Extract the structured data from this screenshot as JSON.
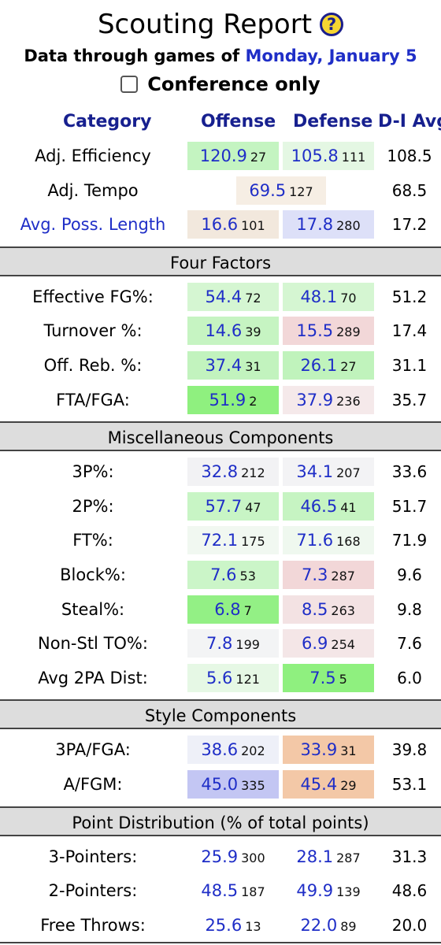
{
  "title": "Scouting Report",
  "help_icon_glyph": "?",
  "subtitle_prefix": "Data through games of ",
  "subtitle_date": "Monday, January 5",
  "conference_only_label": "Conference only",
  "conference_only_checked": false,
  "columns": {
    "category": "Category",
    "offense": "Offense",
    "defense": "Defense",
    "avg": "D-I Avg"
  },
  "rows": [
    {
      "label": "Adj. Efficiency",
      "off": "120.9",
      "off_rank": "27",
      "off_bg": "#c4f4c1",
      "def": "105.8",
      "def_rank": "111",
      "def_bg": "#e4f7e3",
      "avg": "108.5"
    },
    {
      "label": "Adj. Tempo",
      "tempo": "69.5",
      "tempo_rank": "127",
      "tempo_bg": "#f6eee4",
      "avg": "68.5"
    },
    {
      "label": "Avg. Poss. Length",
      "label_link": true,
      "off": "16.6",
      "off_rank": "101",
      "off_bg": "#f2e8dd",
      "def": "17.8",
      "def_rank": "280",
      "def_bg": "#dde0f8",
      "avg": "17.2"
    },
    {
      "section": "Four Factors"
    },
    {
      "label": "Effective FG%:",
      "off": "54.4",
      "off_rank": "72",
      "off_bg": "#d5f6d2",
      "def": "48.1",
      "def_rank": "70",
      "def_bg": "#d5f6d2",
      "avg": "51.2"
    },
    {
      "label": "Turnover %:",
      "off": "14.6",
      "off_rank": "39",
      "off_bg": "#c6f4c2",
      "def": "15.5",
      "def_rank": "289",
      "def_bg": "#f2d7d8",
      "avg": "17.4"
    },
    {
      "label": "Off. Reb. %:",
      "off": "37.4",
      "off_rank": "31",
      "off_bg": "#c2f3be",
      "def": "26.1",
      "def_rank": "27",
      "def_bg": "#c0f3bc",
      "avg": "31.1"
    },
    {
      "label": "FTA/FGA:",
      "off": "51.9",
      "off_rank": "2",
      "off_bg": "#8ff07f",
      "def": "37.9",
      "def_rank": "236",
      "def_bg": "#f5e9ea",
      "avg": "35.7"
    },
    {
      "section": "Miscellaneous Components"
    },
    {
      "label": "3P%:",
      "off": "32.8",
      "off_rank": "212",
      "off_bg": "#f2f2f4",
      "def": "34.1",
      "def_rank": "207",
      "def_bg": "#f3f3f5",
      "avg": "33.6"
    },
    {
      "label": "2P%:",
      "off": "57.7",
      "off_rank": "47",
      "off_bg": "#c8f5c5",
      "def": "46.5",
      "def_rank": "41",
      "def_bg": "#c6f4c2",
      "avg": "51.7"
    },
    {
      "label": "FT%:",
      "off": "72.1",
      "off_rank": "175",
      "off_bg": "#f1f8f1",
      "def": "71.6",
      "def_rank": "168",
      "def_bg": "#eff8ef",
      "avg": "71.9"
    },
    {
      "label": "Block%:",
      "off": "7.6",
      "off_rank": "53",
      "off_bg": "#cbf5c8",
      "def": "7.3",
      "def_rank": "287",
      "def_bg": "#f2d7d8",
      "avg": "9.6"
    },
    {
      "label": "Steal%:",
      "off": "6.8",
      "off_rank": "7",
      "off_bg": "#93f085",
      "def": "8.5",
      "def_rank": "263",
      "def_bg": "#f3e2e3",
      "avg": "9.8"
    },
    {
      "label": "Non-Stl TO%:",
      "off": "7.8",
      "off_rank": "199",
      "off_bg": "#f3f4f5",
      "def": "6.9",
      "def_rank": "254",
      "def_bg": "#f4e6e7",
      "avg": "7.6"
    },
    {
      "label": "Avg 2PA Dist:",
      "off": "5.6",
      "off_rank": "121",
      "off_bg": "#e6f8e5",
      "def": "7.5",
      "def_rank": "5",
      "def_bg": "#8ff07f",
      "avg": "6.0"
    },
    {
      "section": "Style Components"
    },
    {
      "label": "3PA/FGA:",
      "off": "38.6",
      "off_rank": "202",
      "off_bg": "#eef0f8",
      "def": "33.9",
      "def_rank": "31",
      "def_bg": "#f3c8a7",
      "avg": "39.8"
    },
    {
      "label": "A/FGM:",
      "off": "45.0",
      "off_rank": "335",
      "off_bg": "#c3c6f3",
      "def": "45.4",
      "def_rank": "29",
      "def_bg": "#f3c8a7",
      "avg": "53.1"
    },
    {
      "section": "Point Distribution (% of total points)"
    },
    {
      "label": "3-Pointers:",
      "off": "25.9",
      "off_rank": "300",
      "off_bg": "#ffffff",
      "def": "28.1",
      "def_rank": "287",
      "def_bg": "#ffffff",
      "avg": "31.3"
    },
    {
      "label": "2-Pointers:",
      "off": "48.5",
      "off_rank": "187",
      "off_bg": "#ffffff",
      "def": "49.9",
      "def_rank": "139",
      "def_bg": "#ffffff",
      "avg": "48.6"
    },
    {
      "label": "Free Throws:",
      "off": "25.6",
      "off_rank": "13",
      "off_bg": "#ffffff",
      "def": "22.0",
      "def_rank": "89",
      "def_bg": "#ffffff",
      "avg": "20.0"
    }
  ]
}
